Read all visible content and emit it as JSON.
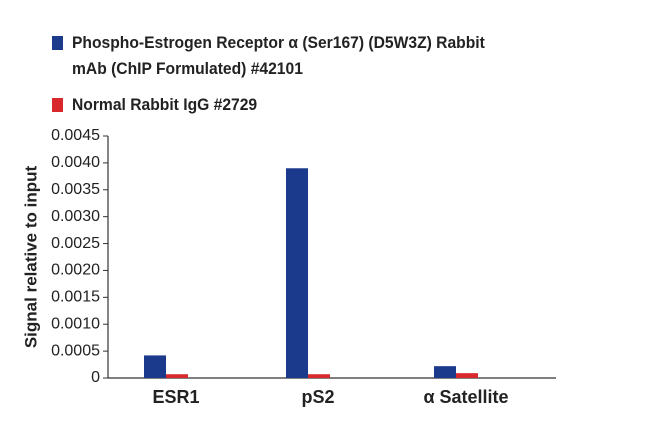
{
  "chart_data": {
    "type": "bar",
    "ylabel": "Signal relative to input",
    "categories": [
      "ESR1",
      "pS2",
      "α Satellite"
    ],
    "series": [
      {
        "name": "Phospho-Estrogen Receptor α (Ser167) (D5W3Z) Rabbit mAb (ChIP Formulated) #42101",
        "color": "#1b3a8c",
        "values": [
          0.00042,
          0.0039,
          0.00022
        ]
      },
      {
        "name": "Normal Rabbit IgG #2729",
        "color": "#d8282c",
        "values": [
          7e-05,
          7e-05,
          9e-05
        ]
      }
    ],
    "ylim": [
      0,
      0.0045
    ],
    "yticks": [
      0,
      0.0005,
      {
        "value": 0.001,
        "label": "0.0010"
      },
      0.0015,
      {
        "value": 0.002,
        "label": "0.0020"
      },
      0.0025,
      {
        "value": 0.003,
        "label": "0.0030"
      },
      0.0035,
      {
        "value": 0.004,
        "label": "0.0040"
      },
      0.0045
    ],
    "legend": "top-left"
  }
}
